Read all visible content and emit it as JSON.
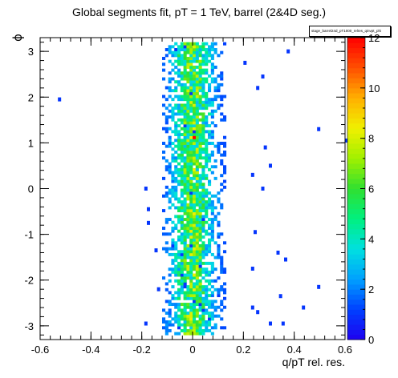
{
  "chart_data": {
    "type": "heatmap",
    "title": "Global segments fit, pT = 1 TeV, barrel (2&4D seg.)",
    "xlabel": "q/pT rel. res.",
    "ylabel": "ϕ",
    "stats_box_label": "stage_barrel24d_pT1000_relres_qinvpt_phi",
    "xlim": [
      -0.6,
      0.6
    ],
    "ylim": [
      -3.3,
      3.3
    ],
    "x_ticks": [
      -0.6,
      -0.4,
      -0.2,
      0,
      0.2,
      0.4,
      0.6
    ],
    "x_tick_labels": [
      "-0.6",
      "-0.4",
      "-0.2",
      "0",
      "0.2",
      "0.4",
      "0.6"
    ],
    "y_ticks": [
      -3,
      -2,
      -1,
      0,
      1,
      2,
      3
    ],
    "y_tick_labels": [
      "-3",
      "-2",
      "-1",
      "0",
      "1",
      "2",
      "3"
    ],
    "z_range": [
      0,
      12
    ],
    "z_ticks": [
      0,
      2,
      4,
      6,
      8,
      10,
      12
    ],
    "z_tick_labels": [
      "0",
      "2",
      "4",
      "6",
      "8",
      "10",
      "12"
    ],
    "colormap": [
      "#1e00f0",
      "#0040ff",
      "#00a0ff",
      "#00e0e0",
      "#00f080",
      "#30e030",
      "#a0f000",
      "#f0f000",
      "#ffb000",
      "#ff5000",
      "#ff0000"
    ],
    "grid": false,
    "distribution": {
      "core_x_center": 0.0,
      "core_x_sigma": 0.055,
      "core_x_range": [
        -0.12,
        0.12
      ],
      "y_range": [
        -3.2,
        3.2
      ],
      "peak_count": 12
    },
    "outliers": [
      {
        "x": -0.53,
        "y": 1.95
      },
      {
        "x": 0.2,
        "y": 2.75
      },
      {
        "x": 0.27,
        "y": 2.45
      },
      {
        "x": 0.37,
        "y": 3.0
      },
      {
        "x": 0.25,
        "y": 2.2
      },
      {
        "x": 0.49,
        "y": 1.3
      },
      {
        "x": 0.6,
        "y": 1.05
      },
      {
        "x": 0.28,
        "y": 0.9
      },
      {
        "x": 0.3,
        "y": 0.5
      },
      {
        "x": 0.27,
        "y": -0.0
      },
      {
        "x": 0.23,
        "y": 0.3
      },
      {
        "x": -0.19,
        "y": -0.0
      },
      {
        "x": -0.18,
        "y": -0.45
      },
      {
        "x": 0.36,
        "y": -1.55
      },
      {
        "x": -0.18,
        "y": -0.75
      },
      {
        "x": 0.33,
        "y": -1.4
      },
      {
        "x": 0.49,
        "y": -2.15
      },
      {
        "x": 0.34,
        "y": -2.35
      },
      {
        "x": 0.43,
        "y": -2.6
      },
      {
        "x": 0.25,
        "y": -2.7
      },
      {
        "x": 0.35,
        "y": -2.95
      },
      {
        "x": 0.3,
        "y": -2.95
      },
      {
        "x": -0.19,
        "y": -2.95
      },
      {
        "x": 0.23,
        "y": -2.6
      },
      {
        "x": 0.24,
        "y": -0.95
      },
      {
        "x": -0.15,
        "y": -1.35
      },
      {
        "x": -0.14,
        "y": -2.2
      },
      {
        "x": 0.23,
        "y": -1.75
      }
    ]
  }
}
